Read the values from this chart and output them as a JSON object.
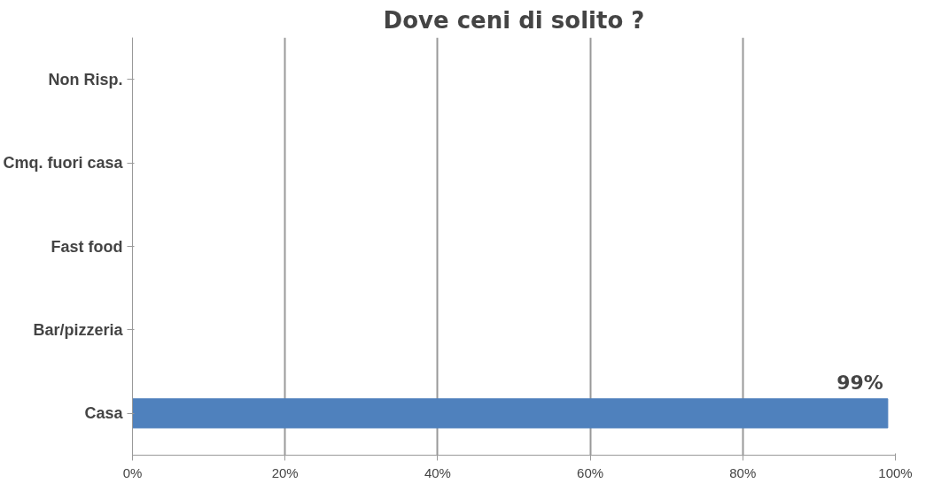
{
  "chart_data": {
    "type": "bar",
    "orientation": "horizontal",
    "title": "Dove ceni di solito ?",
    "categories": [
      "Non Risp.",
      "Cmq. fuori casa",
      "Fast food",
      "Bar/pizzeria",
      "Casa"
    ],
    "values": [
      0,
      0,
      0,
      0,
      99
    ],
    "value_labels": [
      null,
      null,
      null,
      null,
      "99%"
    ],
    "color": "#4f81bd",
    "xlim": [
      0,
      100
    ],
    "xticks": [
      {
        "value": 0,
        "label": "0%"
      },
      {
        "value": 20,
        "label": "20%"
      },
      {
        "value": 40,
        "label": "40%"
      },
      {
        "value": 60,
        "label": "60%"
      },
      {
        "value": 80,
        "label": "80%"
      },
      {
        "value": 100,
        "label": "100%"
      }
    ],
    "grid": "x"
  }
}
